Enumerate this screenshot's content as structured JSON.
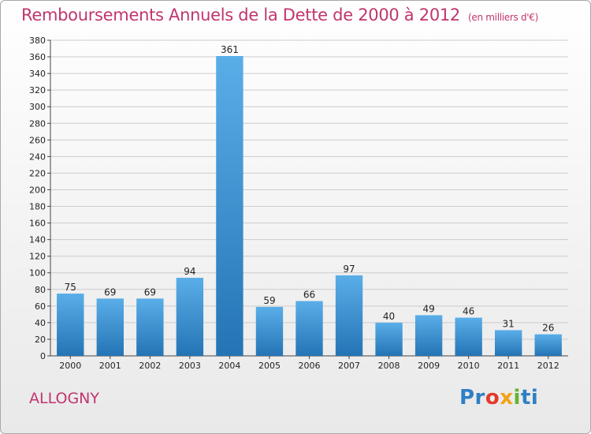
{
  "title": "Remboursements Annuels de la Dette de 2000 à 2012",
  "unit": "(en milliers d'€)",
  "commune": "ALLOGNY",
  "logo": {
    "part1": "Pr",
    "part2": "o",
    "part3": "x",
    "part4": "i",
    "part5": "ti"
  },
  "colors": {
    "title": "#c1356e",
    "bar_light": "#5aaee8",
    "bar_dark": "#2474b5",
    "grid": "#cccccc"
  },
  "chart_data": {
    "type": "bar",
    "title": "Remboursements Annuels de la Dette de 2000 à 2012",
    "categories": [
      "2000",
      "2001",
      "2002",
      "2003",
      "2004",
      "2005",
      "2006",
      "2007",
      "2008",
      "2009",
      "2010",
      "2011",
      "2012"
    ],
    "values": [
      75,
      69,
      69,
      94,
      361,
      59,
      66,
      97,
      40,
      49,
      46,
      31,
      26
    ],
    "ylim": [
      0,
      380
    ],
    "ytick_step": 20,
    "grid": true
  }
}
